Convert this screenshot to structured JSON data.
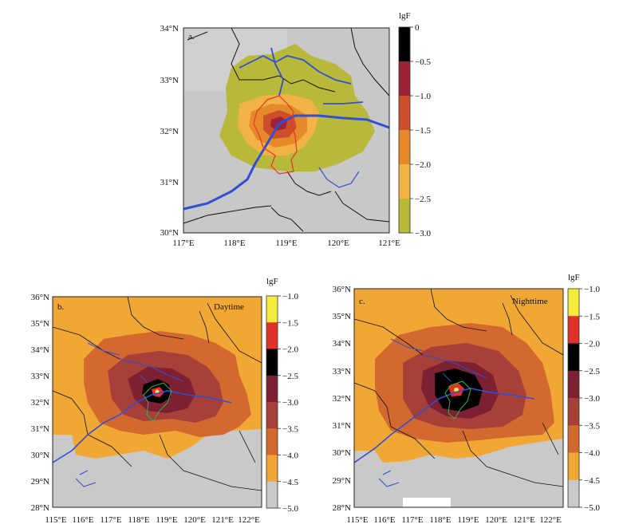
{
  "panels": [
    {
      "id": "a",
      "tag": "a.",
      "title": "",
      "colorbar_label": "lgF",
      "colorbar_ticks": [
        "0",
        "−0.5",
        "−1.0",
        "−1.5",
        "−2.0",
        "−2.5",
        "−3.0"
      ],
      "colorbar_colors": [
        "#000000",
        "#9b2335",
        "#cd4e2b",
        "#e5892b",
        "#f2b245",
        "#b8b83a"
      ],
      "lat_ticks": [
        "34°N",
        "33°N",
        "32°N",
        "31°N",
        "30°N"
      ],
      "lon_ticks": [
        "117°E",
        "118°E",
        "119°E",
        "120°E",
        "121°E"
      ]
    },
    {
      "id": "b",
      "tag": "b.",
      "title": "Daytime",
      "colorbar_label": "lgF",
      "colorbar_ticks": [
        "−1.0",
        "−1.5",
        "−2.0",
        "−2.5",
        "−3.0",
        "−3.5",
        "−4.0",
        "−4.5",
        "−5.0"
      ],
      "colorbar_colors": [
        "#f3ec3a",
        "#e0322a",
        "#000000",
        "#7d2032",
        "#a8403a",
        "#d3692f",
        "#f0a734",
        "#c9c9c9"
      ],
      "lat_ticks": [
        "36°N",
        "35°N",
        "34°N",
        "33°N",
        "32°N",
        "31°N",
        "30°N",
        "29°N",
        "28°N"
      ],
      "lon_ticks": [
        "115°E",
        "116°E",
        "117°E",
        "118°E",
        "119°E",
        "120°E",
        "121°E",
        "122°E"
      ]
    },
    {
      "id": "c",
      "tag": "c.",
      "title": "Nighttime",
      "colorbar_label": "lgF",
      "colorbar_ticks": [
        "−1.0",
        "−1.5",
        "−2.0",
        "−2.5",
        "−3.0",
        "−3.5",
        "−4.0",
        "−4.5",
        "−5.0"
      ],
      "colorbar_colors": [
        "#f3ec3a",
        "#e0322a",
        "#000000",
        "#7d2032",
        "#a8403a",
        "#d3692f",
        "#f0a734",
        "#c9c9c9"
      ],
      "lat_ticks": [
        "36°N",
        "35°N",
        "34°N",
        "33°N",
        "32°N",
        "31°N",
        "30°N",
        "29°N",
        "28°N"
      ],
      "lon_ticks": [
        "115°E",
        "116°E",
        "117°E",
        "118°E",
        "119°E",
        "120°E",
        "121°E",
        "122°E"
      ]
    }
  ],
  "colors": {
    "river": "#2f4fd6",
    "boundary": "#111111",
    "source_outline_a": "#e4342d",
    "source_outline_bc": "#3cae4a",
    "sea_gray": "#c8c8c8",
    "background_gray": "#d0d0d0"
  }
}
